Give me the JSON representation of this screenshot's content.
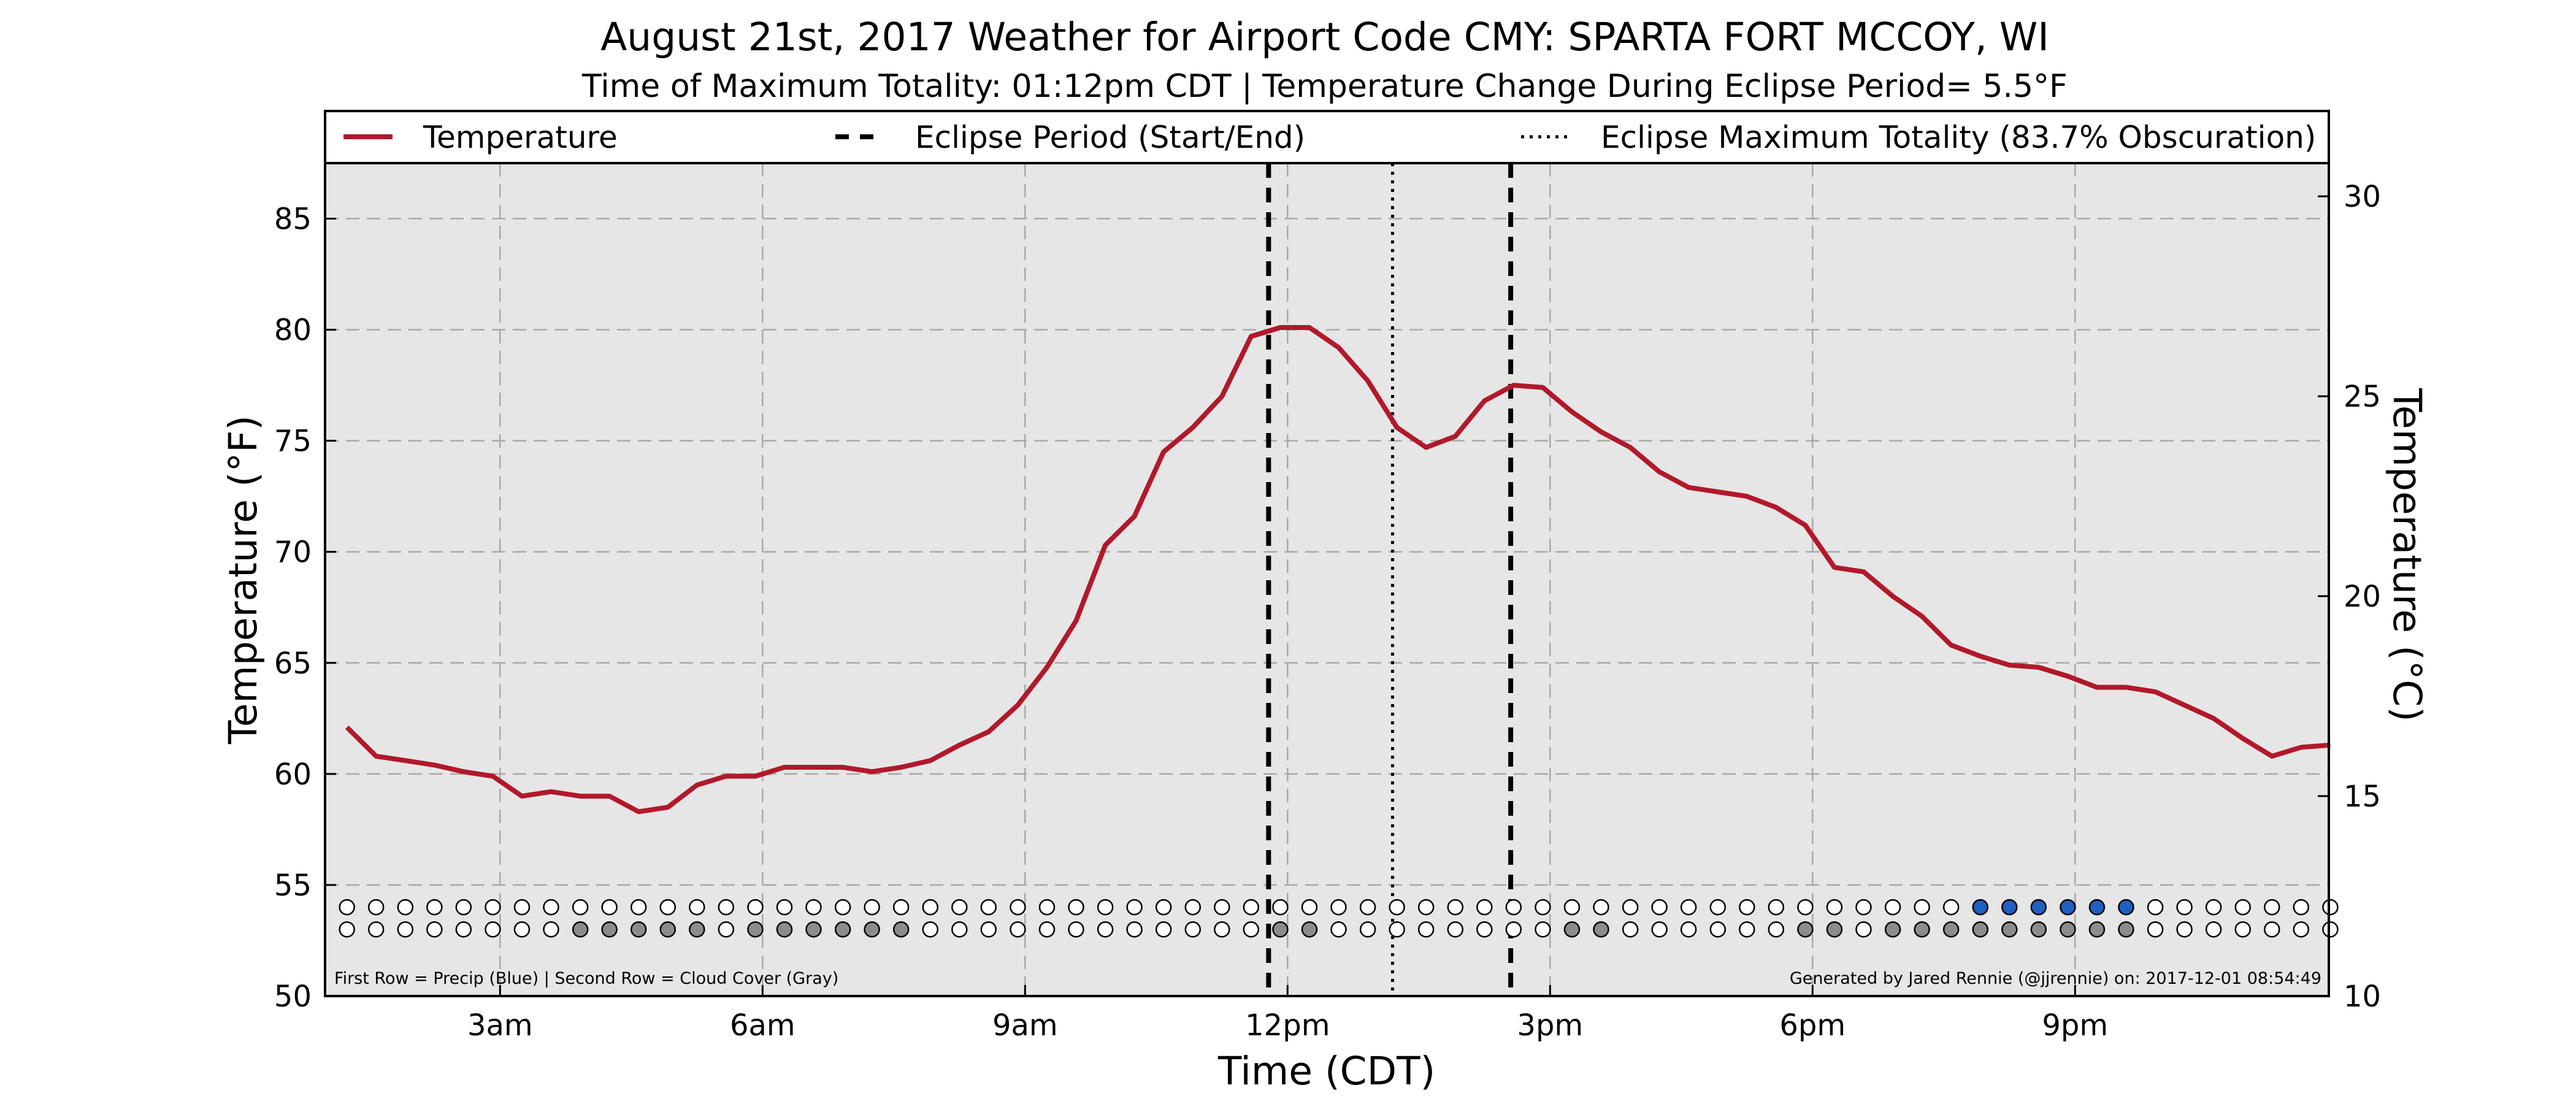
{
  "chart_data": {
    "type": "line",
    "title": "August 21st, 2017 Weather for Airport Code CMY: SPARTA FORT MCCOY, WI",
    "subtitle": "Time of Maximum Totality: 01:12pm CDT | Temperature Change During Eclipse Period= 5.5°F",
    "xlabel": "Time (CDT)",
    "ylabel": "Temperature (°F)",
    "ylabel_right": "Temperature (°C)",
    "xlim": [
      1.0,
      23.9
    ],
    "ylim": [
      50,
      87.5
    ],
    "ylim_right_c": [
      10,
      30.83
    ],
    "x_ticks": [
      {
        "x": 3,
        "label": "3am"
      },
      {
        "x": 6,
        "label": "6am"
      },
      {
        "x": 9,
        "label": "9am"
      },
      {
        "x": 12,
        "label": "12pm"
      },
      {
        "x": 15,
        "label": "3pm"
      },
      {
        "x": 18,
        "label": "6pm"
      },
      {
        "x": 21,
        "label": "9pm"
      }
    ],
    "y_ticks": [
      50,
      55,
      60,
      65,
      70,
      75,
      80,
      85
    ],
    "y_ticks_right": [
      10,
      15,
      20,
      25,
      30
    ],
    "grid": true,
    "legend": {
      "placement": "top",
      "items": [
        {
          "label": "Temperature",
          "style": "solid",
          "color": "#b2182b"
        },
        {
          "label": "Eclipse Period (Start/End)",
          "style": "dashed",
          "color": "#000000"
        },
        {
          "label": "Eclipse Maximum Totality (83.7% Obscuration)",
          "style": "dotted",
          "color": "#000000"
        }
      ]
    },
    "series": [
      {
        "name": "Temperature",
        "color": "#b2182b",
        "x": [
          1.25,
          1.583,
          1.917,
          2.25,
          2.583,
          2.917,
          3.25,
          3.583,
          3.917,
          4.25,
          4.583,
          4.917,
          5.25,
          5.583,
          5.917,
          6.25,
          6.583,
          6.917,
          7.25,
          7.583,
          7.917,
          8.25,
          8.583,
          8.917,
          9.25,
          9.583,
          9.917,
          10.25,
          10.583,
          10.917,
          11.25,
          11.583,
          11.917,
          12.25,
          12.583,
          12.917,
          13.25,
          13.583,
          13.917,
          14.25,
          14.583,
          14.917,
          15.25,
          15.583,
          15.917,
          16.25,
          16.583,
          16.917,
          17.25,
          17.583,
          17.917,
          18.25,
          18.583,
          18.917,
          19.25,
          19.583,
          19.917,
          20.25,
          20.583,
          20.917,
          21.25,
          21.583,
          21.917,
          22.25,
          22.583,
          22.917,
          23.25,
          23.583,
          23.917
        ],
        "values": [
          62.1,
          60.8,
          60.6,
          60.4,
          60.1,
          59.9,
          59.0,
          59.2,
          59.0,
          59.0,
          58.3,
          58.5,
          59.5,
          59.9,
          59.9,
          60.3,
          60.3,
          60.3,
          60.1,
          60.3,
          60.6,
          61.3,
          61.9,
          63.1,
          64.8,
          66.9,
          70.3,
          71.6,
          74.5,
          75.6,
          77.0,
          79.7,
          80.1,
          80.1,
          79.2,
          77.7,
          75.6,
          74.7,
          75.2,
          76.8,
          77.5,
          77.4,
          76.3,
          75.4,
          74.7,
          73.6,
          72.9,
          72.7,
          72.5,
          72.0,
          71.2,
          69.3,
          69.1,
          68.0,
          67.1,
          65.8,
          65.3,
          64.9,
          64.8,
          64.4,
          63.9,
          63.9,
          63.7,
          63.1,
          62.5,
          61.6,
          60.8,
          61.2,
          61.3
        ]
      }
    ],
    "eclipse_start_x": 11.783,
    "eclipse_end_x": 14.55,
    "max_totality_x": 13.2,
    "marker_x": [
      1.25,
      1.583,
      1.917,
      2.25,
      2.583,
      2.917,
      3.25,
      3.583,
      3.917,
      4.25,
      4.583,
      4.917,
      5.25,
      5.583,
      5.917,
      6.25,
      6.583,
      6.917,
      7.25,
      7.583,
      7.917,
      8.25,
      8.583,
      8.917,
      9.25,
      9.583,
      9.917,
      10.25,
      10.583,
      10.917,
      11.25,
      11.583,
      11.917,
      12.25,
      12.583,
      12.917,
      13.25,
      13.583,
      13.917,
      14.25,
      14.583,
      14.917,
      15.25,
      15.583,
      15.917,
      16.25,
      16.583,
      16.917,
      17.25,
      17.583,
      17.917,
      18.25,
      18.583,
      18.917,
      19.25,
      19.583,
      19.917,
      20.25,
      20.583,
      20.917,
      21.25,
      21.583,
      21.917,
      22.25,
      22.583,
      22.917,
      23.25,
      23.583,
      23.917
    ],
    "precip_row_y": 54,
    "cloud_row_y": 53,
    "precip_flags": [
      0,
      0,
      0,
      0,
      0,
      0,
      0,
      0,
      0,
      0,
      0,
      0,
      0,
      0,
      0,
      0,
      0,
      0,
      0,
      0,
      0,
      0,
      0,
      0,
      0,
      0,
      0,
      0,
      0,
      0,
      0,
      0,
      0,
      0,
      0,
      0,
      0,
      0,
      0,
      0,
      0,
      0,
      0,
      0,
      0,
      0,
      0,
      0,
      0,
      0,
      0,
      0,
      0,
      0,
      0,
      0,
      1,
      1,
      1,
      1,
      1,
      1,
      0,
      0,
      0,
      0,
      0,
      0,
      0
    ],
    "cloud_flags": [
      0,
      0,
      0,
      0,
      0,
      0,
      0,
      0,
      1,
      1,
      1,
      1,
      1,
      0,
      1,
      1,
      1,
      1,
      1,
      1,
      0,
      0,
      0,
      0,
      0,
      0,
      0,
      0,
      0,
      0,
      0,
      0,
      1,
      1,
      0,
      0,
      0,
      0,
      0,
      0,
      0,
      0,
      1,
      1,
      0,
      0,
      0,
      0,
      0,
      0,
      1,
      1,
      0,
      1,
      1,
      1,
      1,
      1,
      1,
      1,
      1,
      1,
      0,
      0,
      0,
      0,
      0,
      0,
      0
    ],
    "precip_color": "#1f5fbf",
    "cloud_color": "#8c8c8c",
    "plot_bg_color": "#e6e6e6",
    "annotation_left": "First Row = Precip (Blue) | Second Row = Cloud Cover (Gray)",
    "annotation_right": "Generated by Jared Rennie (@jjrennie) on: 2017-12-01 08:54:49"
  }
}
